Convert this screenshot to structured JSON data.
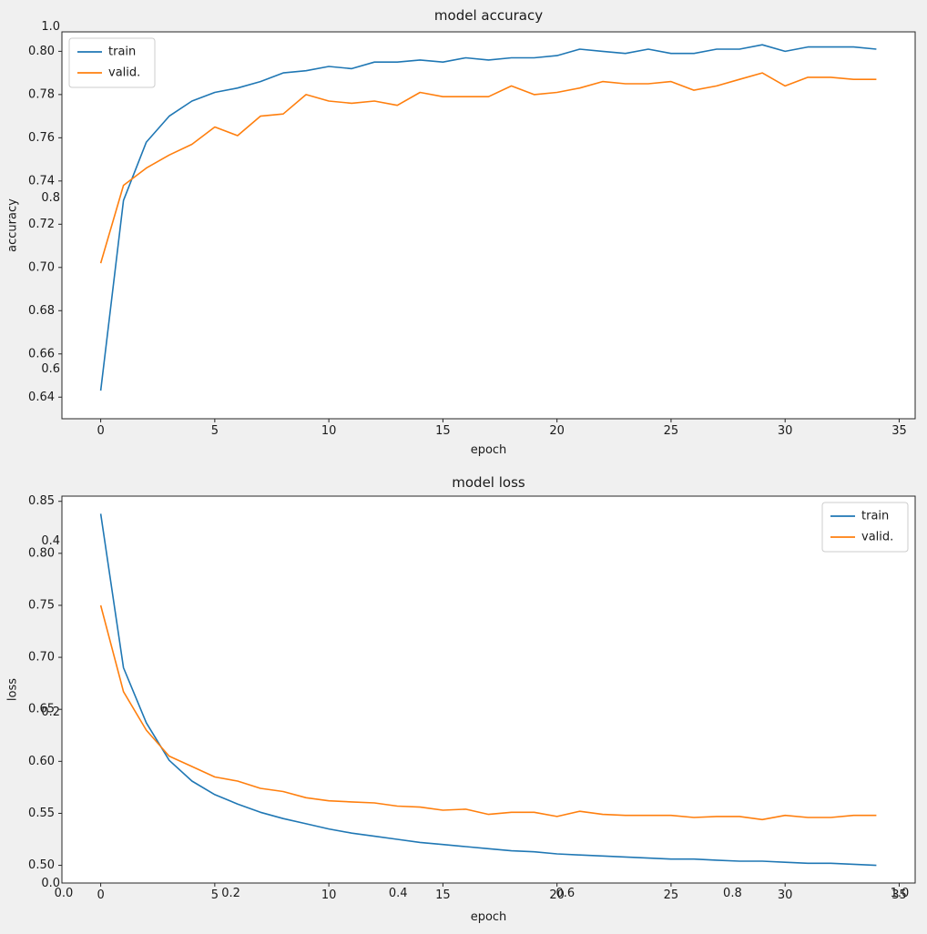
{
  "figure": {
    "bg_color": "#f0f0f0",
    "plot_bg_color": "#ffffff",
    "spine_color": "#262626",
    "colors": {
      "train": "#1f77b4",
      "valid": "#ff7f0e"
    }
  },
  "background_axes": {
    "y_tick_labels": [
      "0.0",
      "0.2",
      "0.4",
      "0.6",
      "0.8",
      "1.0"
    ],
    "x_tick_labels": [
      "0.0",
      "0.2",
      "0.4",
      "0.6",
      "0.8",
      "1.0"
    ]
  },
  "chart_data": [
    {
      "type": "line",
      "title": "model accuracy",
      "xlabel": "epoch",
      "ylabel": "accuracy",
      "legend_loc": "upper-left",
      "legend_entries": [
        "train",
        "valid."
      ],
      "xlim": [
        -1.7,
        35.7
      ],
      "ylim": [
        0.63,
        0.809
      ],
      "x_tick_values": [
        0,
        5,
        10,
        15,
        20,
        25,
        30,
        35
      ],
      "x_tick_labels": [
        "0",
        "5",
        "10",
        "15",
        "20",
        "25",
        "30",
        "35"
      ],
      "y_tick_values": [
        0.64,
        0.66,
        0.68,
        0.7,
        0.72,
        0.74,
        0.76,
        0.78,
        0.8
      ],
      "y_tick_labels": [
        "0.64",
        "0.66",
        "0.68",
        "0.70",
        "0.72",
        "0.74",
        "0.76",
        "0.78",
        "0.80"
      ],
      "x": [
        0,
        1,
        2,
        3,
        4,
        5,
        6,
        7,
        8,
        9,
        10,
        11,
        12,
        13,
        14,
        15,
        16,
        17,
        18,
        19,
        20,
        21,
        22,
        23,
        24,
        25,
        26,
        27,
        28,
        29,
        30,
        31,
        32,
        33,
        34
      ],
      "series": [
        {
          "name": "train",
          "color_key": "train",
          "values": [
            0.643,
            0.731,
            0.758,
            0.77,
            0.777,
            0.781,
            0.783,
            0.786,
            0.79,
            0.791,
            0.793,
            0.792,
            0.795,
            0.795,
            0.796,
            0.795,
            0.797,
            0.796,
            0.797,
            0.797,
            0.798,
            0.801,
            0.8,
            0.799,
            0.801,
            0.799,
            0.799,
            0.801,
            0.801,
            0.803,
            0.8,
            0.802,
            0.802,
            0.802,
            0.801
          ]
        },
        {
          "name": "valid.",
          "color_key": "valid",
          "values": [
            0.702,
            0.738,
            0.746,
            0.752,
            0.757,
            0.765,
            0.761,
            0.77,
            0.771,
            0.78,
            0.777,
            0.776,
            0.777,
            0.775,
            0.781,
            0.779,
            0.779,
            0.779,
            0.784,
            0.78,
            0.781,
            0.783,
            0.786,
            0.785,
            0.785,
            0.786,
            0.782,
            0.784,
            0.787,
            0.79,
            0.784,
            0.788,
            0.788,
            0.787,
            0.787
          ]
        }
      ]
    },
    {
      "type": "line",
      "title": "model loss",
      "xlabel": "epoch",
      "ylabel": "loss",
      "legend_loc": "upper-right",
      "legend_entries": [
        "train",
        "valid."
      ],
      "xlim": [
        -1.7,
        35.7
      ],
      "ylim": [
        0.483,
        0.855
      ],
      "x_tick_values": [
        0,
        5,
        10,
        15,
        20,
        25,
        30,
        35
      ],
      "x_tick_labels": [
        "0",
        "5",
        "10",
        "15",
        "20",
        "25",
        "30",
        "35"
      ],
      "y_tick_values": [
        0.5,
        0.55,
        0.6,
        0.65,
        0.7,
        0.75,
        0.8,
        0.85
      ],
      "y_tick_labels": [
        "0.50",
        "0.55",
        "0.60",
        "0.65",
        "0.70",
        "0.75",
        "0.80",
        "0.85"
      ],
      "x": [
        0,
        1,
        2,
        3,
        4,
        5,
        6,
        7,
        8,
        9,
        10,
        11,
        12,
        13,
        14,
        15,
        16,
        17,
        18,
        19,
        20,
        21,
        22,
        23,
        24,
        25,
        26,
        27,
        28,
        29,
        30,
        31,
        32,
        33,
        34
      ],
      "series": [
        {
          "name": "train",
          "color_key": "train",
          "values": [
            0.838,
            0.69,
            0.637,
            0.601,
            0.581,
            0.568,
            0.559,
            0.551,
            0.545,
            0.54,
            0.535,
            0.531,
            0.528,
            0.525,
            0.522,
            0.52,
            0.518,
            0.516,
            0.514,
            0.513,
            0.511,
            0.51,
            0.509,
            0.508,
            0.507,
            0.506,
            0.506,
            0.505,
            0.504,
            0.504,
            0.503,
            0.502,
            0.502,
            0.501,
            0.5
          ]
        },
        {
          "name": "valid.",
          "color_key": "valid",
          "values": [
            0.75,
            0.667,
            0.63,
            0.605,
            0.595,
            0.585,
            0.581,
            0.574,
            0.571,
            0.565,
            0.562,
            0.561,
            0.56,
            0.557,
            0.556,
            0.553,
            0.554,
            0.549,
            0.551,
            0.551,
            0.547,
            0.552,
            0.549,
            0.548,
            0.548,
            0.548,
            0.546,
            0.547,
            0.547,
            0.544,
            0.548,
            0.546,
            0.546,
            0.548,
            0.548
          ]
        }
      ]
    }
  ]
}
